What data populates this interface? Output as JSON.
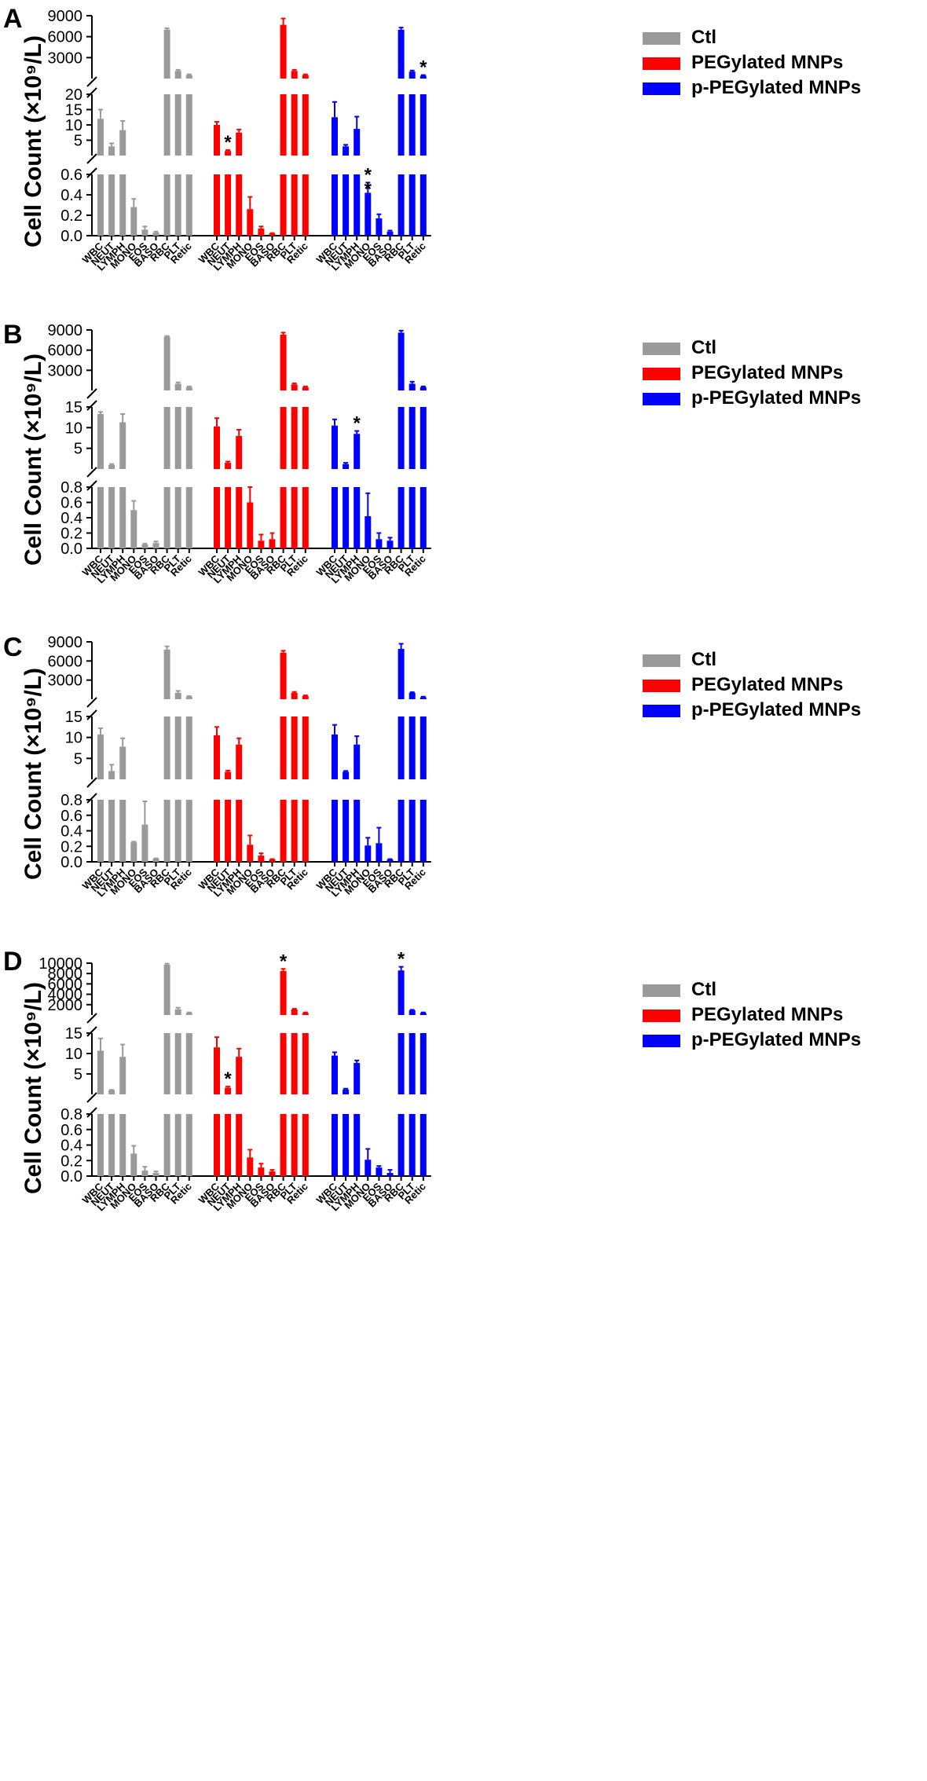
{
  "figure": {
    "y_axis_title": "Cell Count  (×10⁹/L)"
  },
  "legend": {
    "items": [
      {
        "name": "Ctl",
        "color": "#9a9a9a"
      },
      {
        "name": "PEGylated MNPs",
        "color": "#ff0000"
      },
      {
        "name": "p-PEGylated MNPs",
        "color": "#0000ff"
      }
    ]
  },
  "chart_data": [
    {
      "panel": "A",
      "type": "bar",
      "categories": [
        "WBC",
        "NEUT",
        "LYMPH",
        "MONO",
        "EOS",
        "BASO",
        "RBC",
        "PLT",
        "Retic"
      ],
      "segments": {
        "top": {
          "ylim": [
            0,
            9000
          ],
          "ticks": [
            3000,
            6000,
            9000
          ]
        },
        "middle": {
          "ylim": [
            0,
            20
          ],
          "ticks": [
            5,
            10,
            15,
            20
          ]
        },
        "bottom": {
          "ylim": [
            0,
            0.6
          ],
          "ticks": [
            0.0,
            0.2,
            0.4,
            0.6
          ]
        }
      },
      "series": [
        {
          "name": "Ctl",
          "values": [
            12,
            3,
            8.3,
            0.28,
            0.06,
            0.03,
            7000,
            1100,
            500
          ],
          "errors": [
            3,
            1,
            3,
            0.08,
            0.03,
            0.01,
            200,
            150,
            100
          ]
        },
        {
          "name": "PEGylated MNPs",
          "values": [
            10,
            1.5,
            7.5,
            0.26,
            0.07,
            0.02,
            7700,
            1100,
            500
          ],
          "errors": [
            1,
            0.3,
            1,
            0.12,
            0.02,
            0.005,
            900,
            150,
            100
          ]
        },
        {
          "name": "p-PEGylated MNPs",
          "values": [
            12.5,
            3,
            8.7,
            0.42,
            0.17,
            0.04,
            7000,
            1000,
            400
          ],
          "errors": [
            5,
            0.5,
            4,
            0.1,
            0.04,
            0.01,
            300,
            150,
            100
          ]
        }
      ],
      "annotations": [
        {
          "series": "PEGylated MNPs",
          "category": "NEUT",
          "text": "*"
        },
        {
          "series": "p-PEGylated MNPs",
          "category": "MONO",
          "text": "*",
          "extra": "*"
        },
        {
          "series": "p-PEGylated MNPs",
          "category": "Retic",
          "text": "*"
        }
      ]
    },
    {
      "panel": "B",
      "type": "bar",
      "categories": [
        "WBC",
        "NEUT",
        "LYMPH",
        "MONO",
        "EOS",
        "BASO",
        "RBC",
        "PLT",
        "Retic"
      ],
      "segments": {
        "top": {
          "ylim": [
            0,
            9000
          ],
          "ticks": [
            3000,
            6000,
            9000
          ]
        },
        "middle": {
          "ylim": [
            0,
            15
          ],
          "ticks": [
            5,
            10,
            15
          ]
        },
        "bottom": {
          "ylim": [
            0,
            0.8
          ],
          "ticks": [
            0.0,
            0.2,
            0.4,
            0.6,
            0.8
          ]
        }
      },
      "series": [
        {
          "name": "Ctl",
          "values": [
            13.3,
            1,
            11.3,
            0.5,
            0.05,
            0.07,
            8000,
            1000,
            500
          ],
          "errors": [
            0.5,
            0.2,
            2,
            0.12,
            0.01,
            0.02,
            100,
            200,
            100
          ]
        },
        {
          "name": "PEGylated MNPs",
          "values": [
            10.3,
            1.5,
            8,
            0.6,
            0.1,
            0.12,
            8300,
            900,
            500
          ],
          "errors": [
            2,
            0.3,
            1.5,
            0.2,
            0.08,
            0.08,
            300,
            150,
            100
          ]
        },
        {
          "name": "p-PEGylated MNPs",
          "values": [
            10.5,
            1.2,
            8.5,
            0.42,
            0.12,
            0.1,
            8600,
            1000,
            500
          ],
          "errors": [
            1.5,
            0.3,
            0.7,
            0.3,
            0.08,
            0.04,
            300,
            300,
            100
          ]
        }
      ],
      "annotations": [
        {
          "series": "p-PEGylated MNPs",
          "category": "LYMPH",
          "text": "*"
        }
      ]
    },
    {
      "panel": "C",
      "type": "bar",
      "categories": [
        "WBC",
        "NEUT",
        "LYMPH",
        "MONO",
        "EOS",
        "BASO",
        "RBC",
        "PLT",
        "Retic"
      ],
      "segments": {
        "top": {
          "ylim": [
            0,
            9000
          ],
          "ticks": [
            3000,
            6000,
            9000
          ]
        },
        "middle": {
          "ylim": [
            0,
            15
          ],
          "ticks": [
            5,
            10,
            15
          ]
        },
        "bottom": {
          "ylim": [
            0,
            0.8
          ],
          "ticks": [
            0.0,
            0.2,
            0.4,
            0.6,
            0.8
          ]
        }
      },
      "series": [
        {
          "name": "Ctl",
          "values": [
            10.7,
            2,
            7.8,
            0.25,
            0.48,
            0.04,
            7800,
            1000,
            400
          ],
          "errors": [
            1.5,
            1.5,
            2,
            0.01,
            0.3,
            0.005,
            500,
            300,
            100
          ]
        },
        {
          "name": "PEGylated MNPs",
          "values": [
            10.5,
            1.8,
            8.3,
            0.22,
            0.08,
            0.03,
            7300,
            1000,
            500
          ],
          "errors": [
            2,
            0.3,
            1.5,
            0.12,
            0.03,
            0.005,
            300,
            150,
            100
          ]
        },
        {
          "name": "p-PEGylated MNPs",
          "values": [
            10.7,
            1.8,
            8.3,
            0.21,
            0.24,
            0.03,
            7900,
            1000,
            300
          ],
          "errors": [
            2.3,
            0.2,
            2,
            0.1,
            0.2,
            0.005,
            800,
            100,
            100
          ]
        }
      ],
      "annotations": []
    },
    {
      "panel": "D",
      "type": "bar",
      "categories": [
        "WBC",
        "NEUT",
        "LYMPH",
        "MONO",
        "EOS",
        "BASO",
        "RBC",
        "PLT",
        "Retic"
      ],
      "segments": {
        "top": {
          "ylim": [
            0,
            10000
          ],
          "ticks": [
            2000,
            4000,
            6000,
            8000,
            10000
          ]
        },
        "middle": {
          "ylim": [
            0,
            15
          ],
          "ticks": [
            5,
            10,
            15
          ]
        },
        "bottom": {
          "ylim": [
            0,
            0.8
          ],
          "ticks": [
            0.0,
            0.2,
            0.4,
            0.6,
            0.8
          ]
        }
      },
      "series": [
        {
          "name": "Ctl",
          "values": [
            10.7,
            1,
            9.2,
            0.29,
            0.07,
            0.04,
            9700,
            1100,
            400
          ],
          "errors": [
            3,
            0.1,
            3,
            0.1,
            0.05,
            0.02,
            200,
            300,
            100
          ]
        },
        {
          "name": "PEGylated MNPs",
          "values": [
            11.5,
            1.6,
            9.2,
            0.24,
            0.11,
            0.06,
            8500,
            1100,
            400
          ],
          "errors": [
            2.5,
            0.3,
            2,
            0.1,
            0.05,
            0.02,
            400,
            100,
            100
          ]
        },
        {
          "name": "p-PEGylated MNPs",
          "values": [
            9.5,
            1.2,
            7.7,
            0.21,
            0.11,
            0.04,
            8600,
            900,
            400
          ],
          "errors": [
            0.8,
            0.2,
            0.6,
            0.14,
            0.02,
            0.04,
            700,
            100,
            100
          ]
        }
      ],
      "annotations": [
        {
          "series": "PEGylated MNPs",
          "category": "RBC",
          "text": "*"
        },
        {
          "series": "PEGylated MNPs",
          "category": "NEUT",
          "text": "*"
        },
        {
          "series": "p-PEGylated MNPs",
          "category": "RBC",
          "text": "*"
        }
      ]
    }
  ]
}
